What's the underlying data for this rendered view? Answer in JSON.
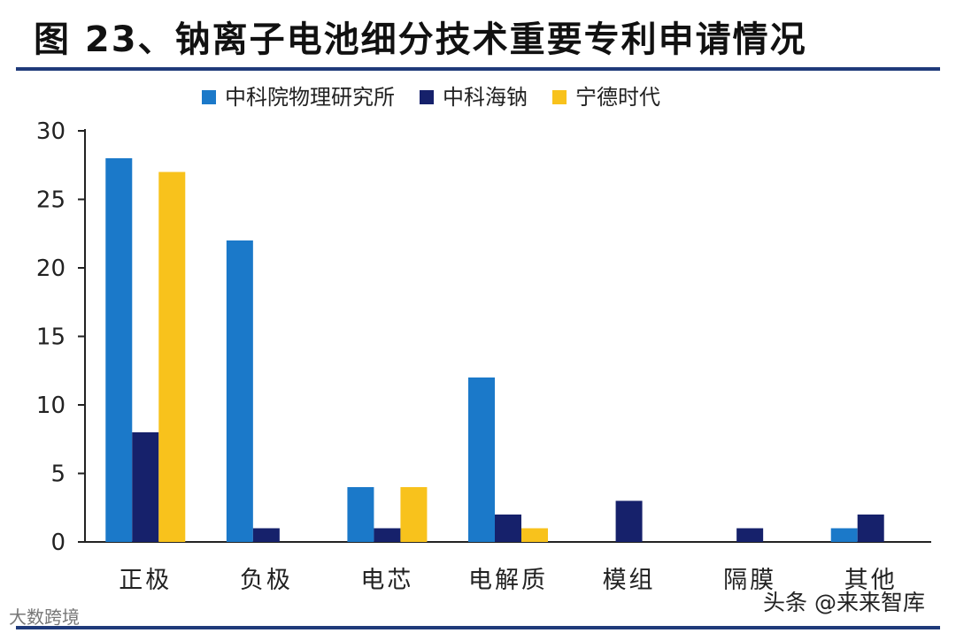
{
  "title": "图 23、钠离子电池细分技术重要专利申请情况",
  "chart_data": {
    "type": "bar",
    "categories": [
      "正极",
      "负极",
      "电芯",
      "电解质",
      "模组",
      "隔膜",
      "其他"
    ],
    "series": [
      {
        "name": "中科院物理研究所",
        "color": "#1b79c9",
        "values": [
          28,
          22,
          4,
          12,
          0,
          0,
          1
        ]
      },
      {
        "name": "中科海钠",
        "color": "#16216b",
        "values": [
          8,
          1,
          1,
          2,
          3,
          1,
          2
        ]
      },
      {
        "name": "宁德时代",
        "color": "#f8c21c",
        "values": [
          27,
          0,
          4,
          1,
          0,
          0,
          0
        ]
      }
    ],
    "ylim": [
      0,
      30
    ],
    "yticks": [
      0,
      5,
      10,
      15,
      20,
      25,
      30
    ],
    "legend": "top",
    "grid": false,
    "xlabel": "",
    "ylabel": ""
  },
  "watermarks": {
    "left": "大数跨境",
    "right": "头条 @来来智库"
  }
}
